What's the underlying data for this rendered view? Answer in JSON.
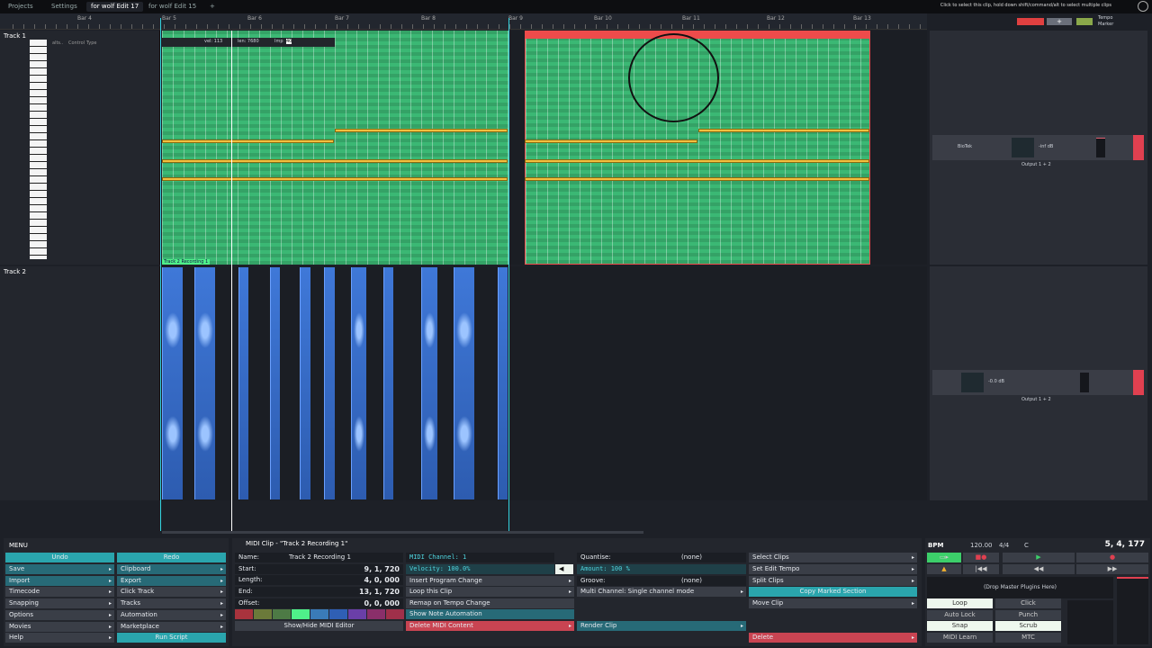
{
  "tabs": {
    "projects": "Projects",
    "settings": "Settings",
    "edit_active": "for wolf Edit 17",
    "edit_other": "for wolf Edit 15",
    "add": "+"
  },
  "hint": "Click to select this clip, hold down shift/command/alt to select multiple clips",
  "ruler": {
    "bars": [
      "Bar 4",
      "Bar 5",
      "Bar 6",
      "Bar 7",
      "Bar 8",
      "Bar 9",
      "Bar 10",
      "Bar 11",
      "Bar 12",
      "Bar 13"
    ]
  },
  "tempo_labels": {
    "tempo": "Tempo",
    "marker": "Marker"
  },
  "track1": {
    "name": "Track 1",
    "controls": [
      "alts..",
      "Control",
      "Type"
    ],
    "vel": "vel: 113",
    "len": "len: 7680",
    "Imp": "Imp",
    "imp_val": "40",
    "clip_label": "Track 2 Recording 1"
  },
  "track2": {
    "name": "Track 2"
  },
  "rack1": {
    "plugin": "BioTek",
    "vol": "-inf dB",
    "output": "Output 1 + 2"
  },
  "rack2": {
    "vol": "-0.0 dB",
    "output": "Output 1 + 2"
  },
  "menu": {
    "title": "MENU",
    "undo": "Undo",
    "redo": "Redo",
    "left": [
      "Save",
      "Import",
      "Timecode",
      "Snapping",
      "Options",
      "Movies",
      "Help"
    ],
    "right": [
      "Clipboard",
      "Export",
      "Click Track",
      "Tracks",
      "Automation",
      "Marketplace"
    ],
    "run_script": "Run Script"
  },
  "clip": {
    "title": "MIDI Clip - \"Track 2 Recording 1\"",
    "name_label": "Name:",
    "name": "Track 2 Recording 1",
    "start_label": "Start:",
    "start": "9, 1, 720",
    "length_label": "Length:",
    "length": "4, 0, 000",
    "end_label": "End:",
    "end": "13, 1, 720",
    "offset_label": "Offset:",
    "offset": "0, 0, 000",
    "show_hide": "Show/Hide MIDI Editor",
    "midi_channel": "MIDI Channel: 1",
    "velocity": "Velocity: 100.0%",
    "insert_pc": "Insert Program Change",
    "loop": "Loop this Clip",
    "remap": "Remap on Tempo Change",
    "show_auto": "Show Note Automation",
    "delete_midi": "Delete MIDI Content",
    "quantise_label": "Quantise:",
    "quantise": "(none)",
    "amount": "Amount: 100 %",
    "groove_label": "Groove:",
    "groove": "(none)",
    "multi": "Multi Channel: Single channel mode",
    "render": "Render Clip",
    "select_clips": "Select Clips",
    "set_tempo": "Set Edit Tempo",
    "split": "Split Clips",
    "copy_marked": "Copy Marked Section",
    "move": "Move Clip",
    "delete": "Delete",
    "swatches": [
      "#a8333d",
      "#6b7a3a",
      "#4d7a45",
      "#4ff08a",
      "#3a7bb8",
      "#2f5fb5",
      "#6a3fa8",
      "#8a2f6a",
      "#a0304a"
    ]
  },
  "transport": {
    "bpm_label": "BPM",
    "bpm": "120.00",
    "sig": "4/4",
    "key": "C",
    "position": "5, 4, 177",
    "drop": "(Drop Master Plugins Here)",
    "toggles": [
      "Loop",
      "Click",
      "Auto Lock",
      "Punch",
      "Snap",
      "Scrub",
      "MIDI Learn",
      "MTC"
    ]
  },
  "colors": {
    "clip_green": "#3bb874",
    "clip_red": "#ee4b4b",
    "audio_blue": "#3f78d8",
    "accent_teal": "#2aa5ad",
    "note_yellow": "#f0c040"
  }
}
